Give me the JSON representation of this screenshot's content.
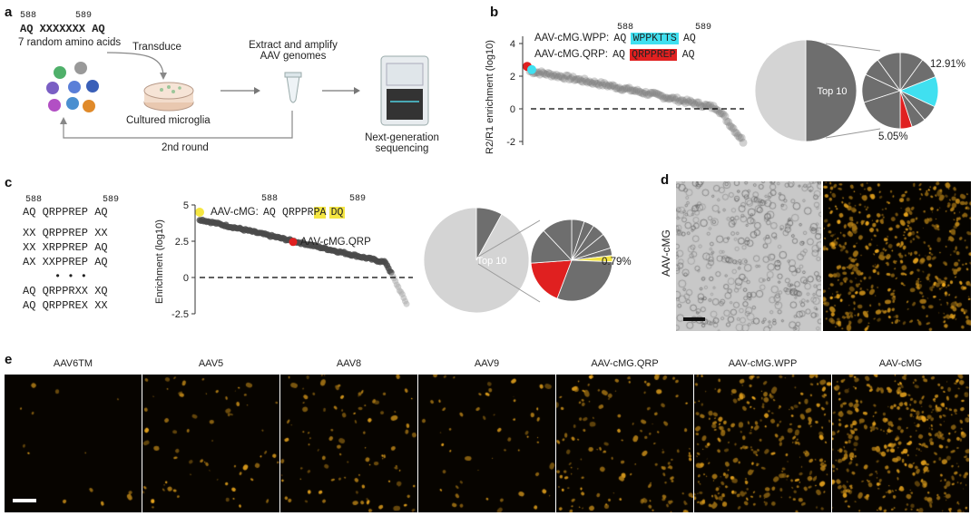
{
  "panel_a": {
    "letter": "a",
    "pos_left": "588",
    "pos_right": "589",
    "seq": "AQ XXXXXXX AQ",
    "random_label": "7 random amino acids",
    "transduce": "Transduce",
    "cultured": "Cultured microglia",
    "round2": "2nd round",
    "extract_line1": "Extract and amplify",
    "extract_line2": "AAV genomes",
    "ngs_line1": "Next-generation",
    "ngs_line2": "sequencing"
  },
  "panel_b": {
    "letter": "b",
    "ylabel": "R2/R1 enrichment (log10)",
    "pos_left": "588",
    "pos_right": "589",
    "variant1_name": "AAV-cMG.WPP:",
    "variant1_pre": "AQ",
    "variant1_seq": "WPPKTTS",
    "variant1_post": "AQ",
    "variant2_name": "AAV-cMG.QRP:",
    "variant2_pre": "AQ",
    "variant2_seq": "QRPPREP",
    "variant2_post": "AQ",
    "pie_top_label": "Top 10",
    "pct_high": "12.91%",
    "pct_low": "5.05%"
  },
  "panel_c": {
    "letter": "c",
    "pos_left": "588",
    "pos_right": "589",
    "seq_lines": [
      "AQ QRPPREP AQ",
      "XX QRPPREP XX",
      "XX XRPPREP AQ",
      "AX XXPPREP AQ",
      "• • •",
      "AQ QRPPRXX XQ",
      "AQ QRPPREX XX"
    ],
    "ylabel": "Enrichment (log10)",
    "variant_name": "AAV-cMG:",
    "variant_pre": "AQ",
    "variant_seq_a": "QRPPR",
    "variant_seq_b": "PA",
    "variant_seq_c": "DQ",
    "qrp_label": "AAV-cMG.QRP",
    "pie_top_label": "Top 10",
    "pct": "0.79%"
  },
  "panel_d": {
    "letter": "d",
    "side_label": "AAV-cMG"
  },
  "panel_e": {
    "letter": "e",
    "labels": [
      "AAV6TM",
      "AAV5",
      "AAV8",
      "AAV9",
      "AAV-cMG.QRP",
      "AAV-cMG.WPP",
      "AAV-cMG"
    ],
    "density": [
      0.03,
      0.15,
      0.22,
      0.12,
      0.32,
      0.62,
      0.85
    ]
  },
  "colors": {
    "cyan": "#40e0f0",
    "red": "#e02020",
    "yellow": "#f5e642",
    "dark_gray": "#6e6e6e",
    "light_gray": "#d4d4d4",
    "fluor": "#f0a818"
  },
  "chart_data": [
    {
      "type": "scatter",
      "panel": "b",
      "ylim": [
        -2,
        4
      ],
      "yticks": [
        -2,
        0,
        2,
        4
      ],
      "baseline": 0
    },
    {
      "type": "scatter",
      "panel": "c",
      "ylim": [
        -2.5,
        5
      ],
      "yticks": [
        -2.5,
        0,
        2.5,
        5
      ],
      "baseline": 0
    },
    {
      "type": "pie",
      "panel": "b",
      "highlight_pcts": [
        12.91,
        5.05
      ]
    },
    {
      "type": "pie",
      "panel": "c",
      "highlight_pcts": [
        0.79
      ]
    }
  ]
}
